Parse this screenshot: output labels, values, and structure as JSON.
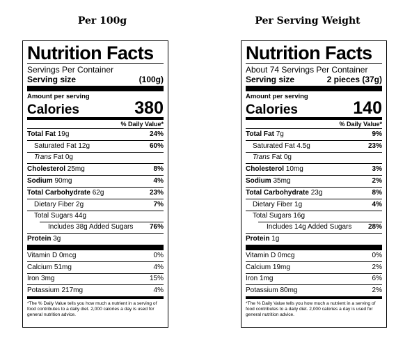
{
  "labels": [
    {
      "column_title": "Per 100g",
      "title": "Nutrition Facts",
      "servings_per_container": "Servings Per Container",
      "serving_size_label": "Serving size",
      "serving_size_value": "(100g)",
      "amount_per_serving": "Amount per serving",
      "calories_label": "Calories",
      "calories_value": "380",
      "daily_value_header": "% Daily Value*",
      "total_fat": {
        "label": "Total Fat",
        "amount": "19g",
        "pct": "24%"
      },
      "saturated_fat": {
        "label": "Saturated Fat",
        "amount": "12g",
        "pct": "60%"
      },
      "trans_fat": {
        "italic": "Trans",
        "label": "Fat",
        "amount": "0g"
      },
      "cholesterol": {
        "label": "Cholesterol",
        "amount": "25mg",
        "pct": "8%"
      },
      "sodium": {
        "label": "Sodium",
        "amount": "90mg",
        "pct": "4%"
      },
      "total_carbohydrate": {
        "label": "Total Carbohydrate",
        "amount": "62g",
        "pct": "23%"
      },
      "dietary_fiber": {
        "label": "Dietary Fiber",
        "amount": "2g",
        "pct": "7%"
      },
      "total_sugars": {
        "label": "Total Sugars",
        "amount": "44g"
      },
      "added_sugars": {
        "prefix": "Includes",
        "amount": "38g",
        "label": "Added Sugars",
        "pct": "76%"
      },
      "protein": {
        "label": "Protein",
        "amount": "3g"
      },
      "vitamin_d": {
        "label": "Vitamin D",
        "amount": "0mcg",
        "pct": "0%"
      },
      "calcium": {
        "label": "Calcium",
        "amount": "51mg",
        "pct": "4%"
      },
      "iron": {
        "label": "Iron",
        "amount": "3mg",
        "pct": "15%"
      },
      "potassium": {
        "label": "Potassium",
        "amount": "217mg",
        "pct": "4%"
      },
      "footnote": "*The % Daily Value tells you how much a nutrient in a serving of food contributes to a daily diet. 2,000 calories a day is used for general nutrition advice."
    },
    {
      "column_title": "Per Serving Weight",
      "title": "Nutrition Facts",
      "servings_per_container": "About 74 Servings Per Container",
      "serving_size_label": "Serving size",
      "serving_size_value": "2 pieces (37g)",
      "amount_per_serving": "Amount per serving",
      "calories_label": "Calories",
      "calories_value": "140",
      "daily_value_header": "% Daily Value*",
      "total_fat": {
        "label": "Total Fat",
        "amount": "7g",
        "pct": "9%"
      },
      "saturated_fat": {
        "label": "Saturated Fat",
        "amount": "4.5g",
        "pct": "23%"
      },
      "trans_fat": {
        "italic": "Trans",
        "label": "Fat",
        "amount": "0g"
      },
      "cholesterol": {
        "label": "Cholesterol",
        "amount": "10mg",
        "pct": "3%"
      },
      "sodium": {
        "label": "Sodium",
        "amount": "35mg",
        "pct": "2%"
      },
      "total_carbohydrate": {
        "label": "Total Carbohydrate",
        "amount": "23g",
        "pct": "8%"
      },
      "dietary_fiber": {
        "label": "Dietary Fiber",
        "amount": "1g",
        "pct": "4%"
      },
      "total_sugars": {
        "label": "Total Sugars",
        "amount": "16g"
      },
      "added_sugars": {
        "prefix": "Includes",
        "amount": "14g",
        "label": "Added Sugars",
        "pct": "28%"
      },
      "protein": {
        "label": "Protein",
        "amount": "1g"
      },
      "vitamin_d": {
        "label": "Vitamin D",
        "amount": "0mcg",
        "pct": "0%"
      },
      "calcium": {
        "label": "Calcium",
        "amount": "19mg",
        "pct": "2%"
      },
      "iron": {
        "label": "Iron",
        "amount": "1mg",
        "pct": "6%"
      },
      "potassium": {
        "label": "Potassium",
        "amount": "80mg",
        "pct": "2%"
      },
      "footnote": "*The % Daily Value tells you how much a nutrient in a serving of food contributes to a daily diet. 2,000 calories a day is used for general nutrition advice."
    }
  ]
}
